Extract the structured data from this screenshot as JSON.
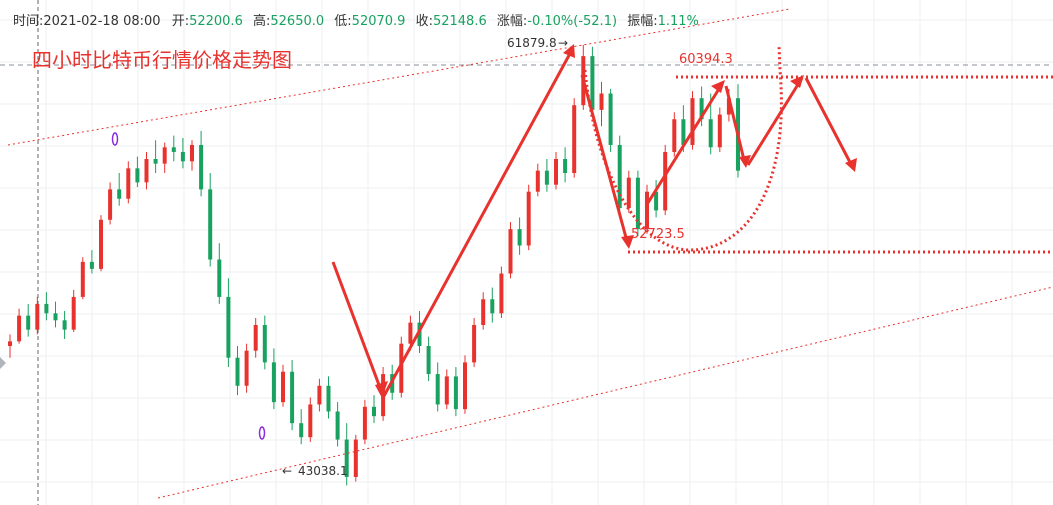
{
  "header": {
    "time_label": "时间:",
    "time_value": "2021-02-18 08:00",
    "open_label": "开:",
    "open_value": "52200.6",
    "high_label": "高:",
    "high_value": "52650.0",
    "low_label": "低:",
    "low_value": "52070.9",
    "close_label": "收:",
    "close_value": "52148.6",
    "change_label": "涨幅:",
    "change_value": "-0.10%(-52.1)",
    "amplitude_label": "振幅:",
    "amplitude_value": "1.11%"
  },
  "title": "四小时比特币行情价格走势图",
  "colors": {
    "up": "#e8322d",
    "down": "#19a15f",
    "annotation": "#e8322d",
    "grid": "#edeff2",
    "marker": "#8a2be2"
  },
  "chart_data": {
    "type": "candlestick",
    "y_range": [
      42200,
      63800
    ],
    "grid": true,
    "candles": [
      [
        49000,
        49500,
        48500,
        49200
      ],
      [
        49200,
        50600,
        49100,
        50300
      ],
      [
        50300,
        50800,
        49400,
        49700
      ],
      [
        49700,
        51100,
        49500,
        50800
      ],
      [
        50800,
        51300,
        50100,
        50400
      ],
      [
        50400,
        50900,
        49800,
        50100
      ],
      [
        50100,
        50500,
        49300,
        49700
      ],
      [
        49700,
        51400,
        49600,
        51100
      ],
      [
        51100,
        52800,
        51000,
        52600
      ],
      [
        52600,
        53100,
        52100,
        52300
      ],
      [
        52300,
        54600,
        52200,
        54400
      ],
      [
        54400,
        56000,
        54200,
        55700
      ],
      [
        55700,
        56400,
        55000,
        55300
      ],
      [
        55300,
        56900,
        55100,
        56600
      ],
      [
        56600,
        57100,
        55800,
        56000
      ],
      [
        56000,
        57300,
        55700,
        57000
      ],
      [
        57000,
        57800,
        56400,
        56800
      ],
      [
        56800,
        57700,
        56400,
        57500
      ],
      [
        57500,
        58000,
        56900,
        57300
      ],
      [
        57300,
        57900,
        56600,
        56900
      ],
      [
        56900,
        57800,
        56500,
        57600
      ],
      [
        57600,
        58200,
        55400,
        55700
      ],
      [
        55700,
        56400,
        52400,
        52700
      ],
      [
        52700,
        53400,
        50800,
        51100
      ],
      [
        51100,
        51900,
        48100,
        48500
      ],
      [
        48500,
        49000,
        46900,
        47300
      ],
      [
        47300,
        49100,
        47000,
        48800
      ],
      [
        48800,
        50200,
        48500,
        49900
      ],
      [
        49900,
        50300,
        48000,
        48300
      ],
      [
        48300,
        48900,
        46300,
        46600
      ],
      [
        46600,
        48200,
        46400,
        47900
      ],
      [
        47900,
        48400,
        45400,
        45700
      ],
      [
        45700,
        46300,
        44800,
        45100
      ],
      [
        45100,
        46800,
        44900,
        46500
      ],
      [
        46500,
        47600,
        46200,
        47300
      ],
      [
        47300,
        47700,
        45900,
        46200
      ],
      [
        46200,
        46600,
        44700,
        45000
      ],
      [
        45000,
        45700,
        43038.1,
        43400
      ],
      [
        43400,
        45200,
        43200,
        45000
      ],
      [
        45000,
        46700,
        44800,
        46400
      ],
      [
        46400,
        46900,
        45700,
        46000
      ],
      [
        46000,
        48100,
        45800,
        47800
      ],
      [
        47800,
        48200,
        46700,
        47000
      ],
      [
        47000,
        49400,
        46800,
        49100
      ],
      [
        49100,
        50300,
        48800,
        50000
      ],
      [
        50000,
        50500,
        48700,
        49000
      ],
      [
        49000,
        49400,
        47500,
        47800
      ],
      [
        47800,
        48300,
        46200,
        46500
      ],
      [
        46500,
        48000,
        46300,
        47700
      ],
      [
        47700,
        48100,
        46000,
        46300
      ],
      [
        46300,
        48600,
        46100,
        48300
      ],
      [
        48300,
        50200,
        48100,
        49900
      ],
      [
        49900,
        51300,
        49700,
        51000
      ],
      [
        51000,
        51500,
        50000,
        50400
      ],
      [
        50400,
        52400,
        50200,
        52100
      ],
      [
        52100,
        54300,
        51900,
        54000
      ],
      [
        54000,
        54500,
        52900,
        53300
      ],
      [
        53300,
        55900,
        53100,
        55600
      ],
      [
        55600,
        56800,
        55400,
        56500
      ],
      [
        56500,
        57000,
        55600,
        55900
      ],
      [
        55900,
        57300,
        55700,
        57000
      ],
      [
        57000,
        57500,
        56000,
        56400
      ],
      [
        56400,
        59600,
        56200,
        59300
      ],
      [
        59300,
        61879.8,
        59100,
        61400
      ],
      [
        61400,
        61800,
        58800,
        59100
      ],
      [
        59100,
        60300,
        58400,
        59800
      ],
      [
        59800,
        60000,
        57300,
        57600
      ],
      [
        57600,
        58000,
        54600,
        54900
      ],
      [
        54900,
        56500,
        54700,
        56200
      ],
      [
        56200,
        56500,
        53700,
        54000
      ],
      [
        54000,
        55900,
        53800,
        55600
      ],
      [
        55600,
        56100,
        54500,
        54800
      ],
      [
        54800,
        57600,
        54600,
        57300
      ],
      [
        57300,
        59000,
        57100,
        58700
      ],
      [
        58700,
        59300,
        57300,
        57600
      ],
      [
        57600,
        59900,
        57400,
        59600
      ],
      [
        59600,
        60100,
        58400,
        58700
      ],
      [
        58700,
        59800,
        57200,
        57500
      ],
      [
        57500,
        59200,
        57300,
        58900
      ],
      [
        58900,
        60000,
        58600,
        59600
      ],
      [
        59600,
        60200,
        56200,
        56500
      ]
    ],
    "annotations": {
      "high_label": "61879.8",
      "low_label": "43038.1",
      "level_upper": "60394.3",
      "level_lower": "52723.5"
    }
  }
}
